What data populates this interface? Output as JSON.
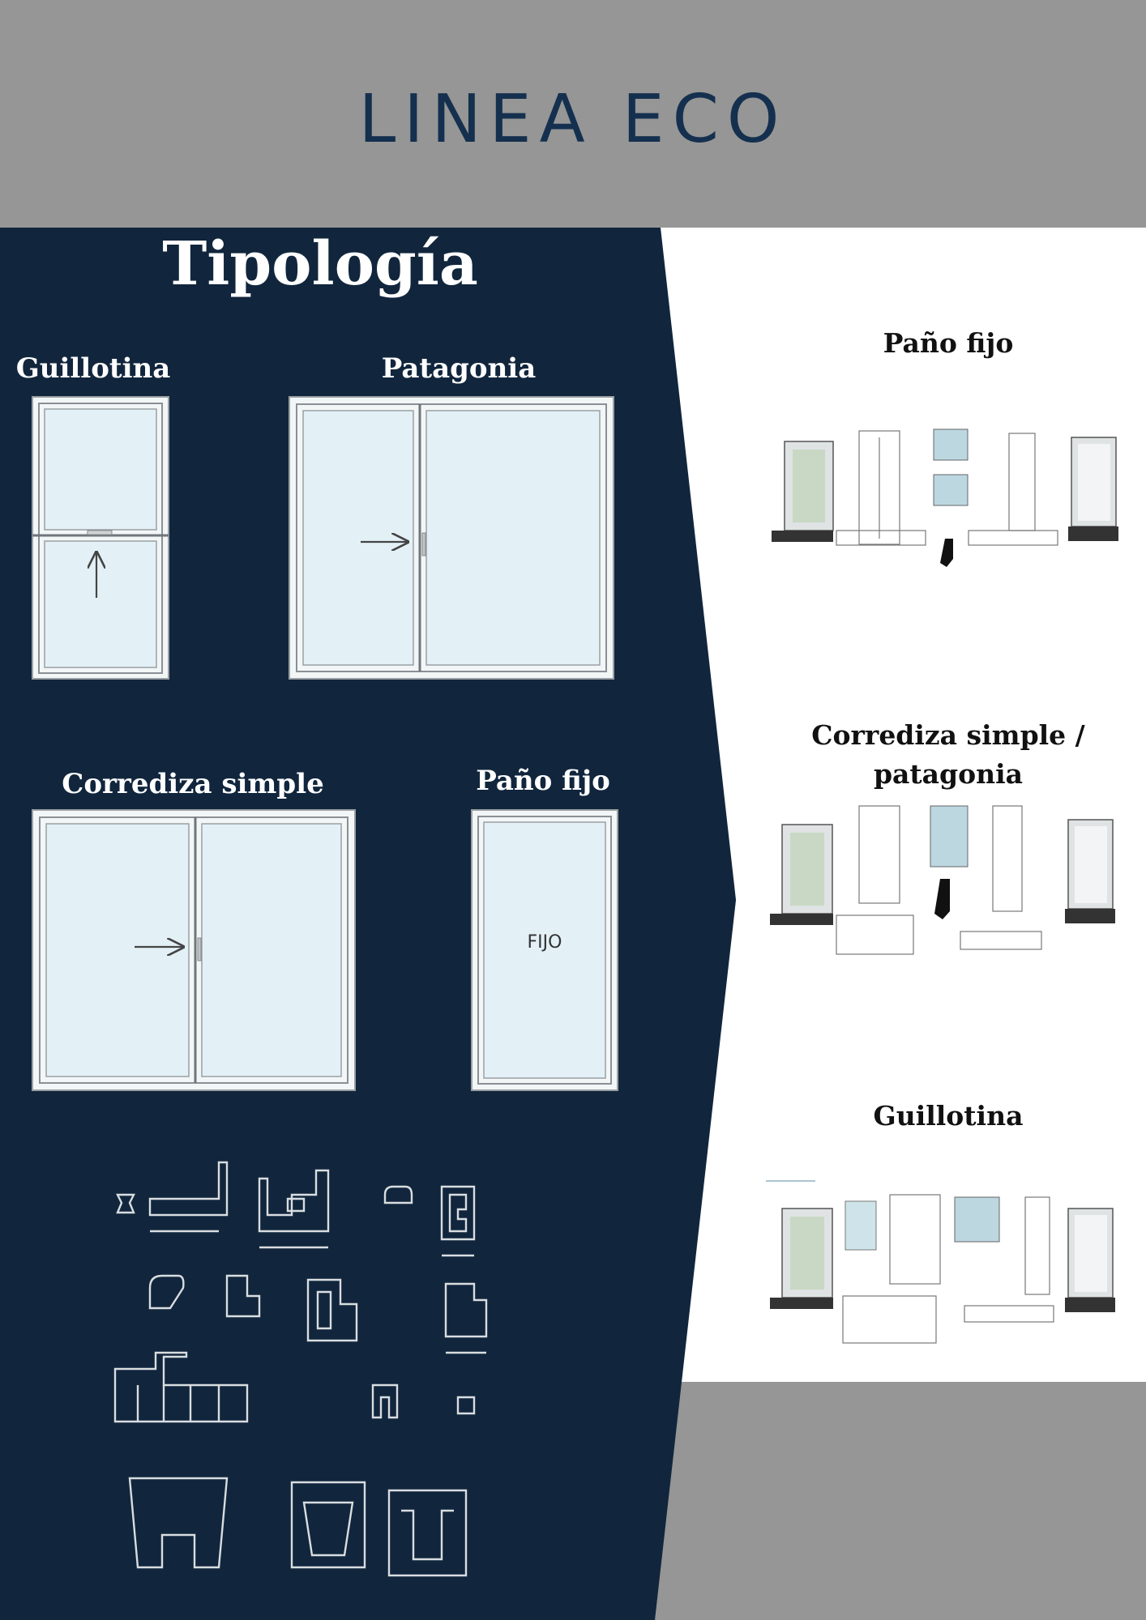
{
  "header": {
    "title": "LINEA ECO"
  },
  "left_panel": {
    "heading": "Tipología",
    "windows": [
      {
        "label": "Guillotina"
      },
      {
        "label": "Patagonia"
      },
      {
        "label": "Corrediza simple"
      },
      {
        "label": "Paño fijo",
        "inner_text": "FIJO"
      }
    ]
  },
  "right_panel": {
    "items": [
      {
        "label": "Paño fijo"
      },
      {
        "label_line1": "Corrediza simple /",
        "label_line2": "patagonia"
      },
      {
        "label": "Guillotina"
      }
    ]
  },
  "colors": {
    "gray": "#959695",
    "navy": "#11263d",
    "title_navy": "#15304f",
    "glass": "#e3f1f7"
  }
}
